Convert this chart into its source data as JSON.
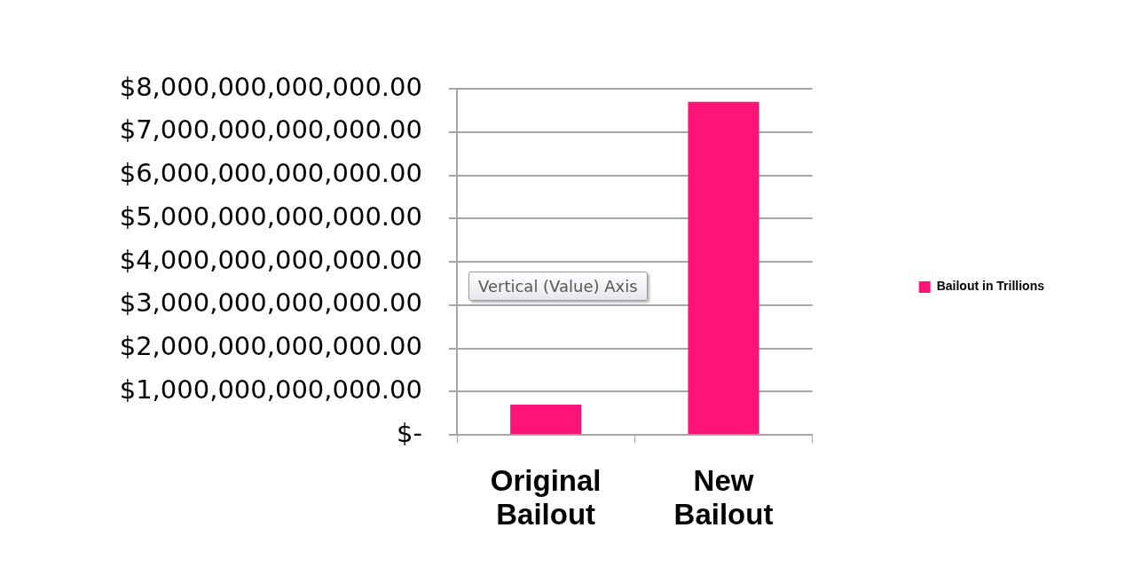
{
  "chart_data": {
    "type": "bar",
    "categories": [
      "Original Bailout",
      "New Bailout"
    ],
    "series": [
      {
        "name": "Bailout in Trillions",
        "color": "#ff1478",
        "values": [
          700000000000,
          7700000000000
        ]
      }
    ],
    "ylim": [
      0,
      8000000000000
    ],
    "yticks": [
      {
        "value": 0,
        "label": "$-"
      },
      {
        "value": 1000000000000,
        "label": "$1,000,000,000,000.00"
      },
      {
        "value": 2000000000000,
        "label": "$2,000,000,000,000.00"
      },
      {
        "value": 3000000000000,
        "label": "$3,000,000,000,000.00"
      },
      {
        "value": 4000000000000,
        "label": "$4,000,000,000,000.00"
      },
      {
        "value": 5000000000000,
        "label": "$5,000,000,000,000.00"
      },
      {
        "value": 6000000000000,
        "label": "$6,000,000,000,000.00"
      },
      {
        "value": 7000000000000,
        "label": "$7,000,000,000,000.00"
      },
      {
        "value": 8000000000000,
        "label": "$8,000,000,000,000.00"
      }
    ],
    "grid": "y",
    "legend": "right",
    "annotations": [
      "Vertical (Value) Axis"
    ]
  }
}
